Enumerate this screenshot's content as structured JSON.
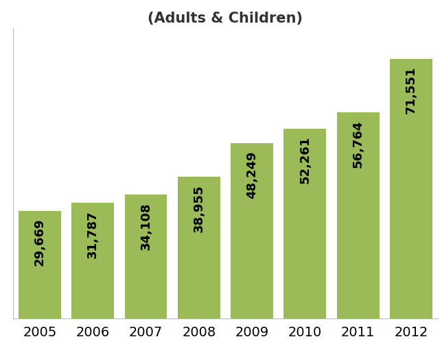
{
  "chart_data": {
    "type": "bar",
    "title": "(Adults & Children)",
    "categories": [
      "2005",
      "2006",
      "2007",
      "2008",
      "2009",
      "2010",
      "2011",
      "2012"
    ],
    "values": [
      29669,
      31787,
      34108,
      38955,
      48249,
      52261,
      56764,
      71551
    ],
    "value_labels": [
      "29,669",
      "31,787",
      "34,108",
      "38,955",
      "48,249",
      "52,261",
      "56,764",
      "71,551"
    ],
    "color": "#9bbb59",
    "ylim": [
      0,
      80000
    ],
    "yticks": [],
    "data_labels": true,
    "tick_labels": "x",
    "grid": false
  }
}
